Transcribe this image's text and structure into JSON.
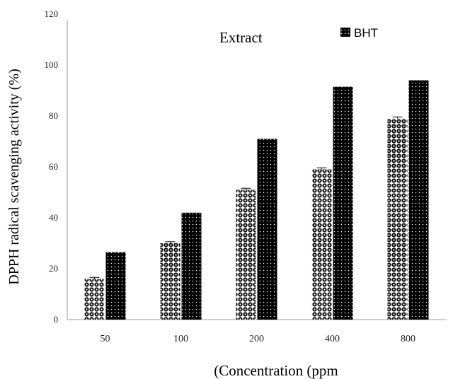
{
  "chart_data": {
    "type": "bar",
    "ylabel": "DPPH radical scavenging activity (%)",
    "xlabel": "(Concentration (ppm",
    "categories": [
      "50",
      "100",
      "200",
      "400",
      "800"
    ],
    "ylim": [
      0,
      120
    ],
    "yticks": [
      0,
      20,
      40,
      60,
      80,
      100,
      120
    ],
    "grid": false,
    "legend_position": "top",
    "series": [
      {
        "name": "Extract",
        "values": [
          16,
          30,
          51,
          59,
          79
        ],
        "errors": [
          0.6,
          0.6,
          0.6,
          0.6,
          0.6
        ],
        "pattern": "checker",
        "color": "#000000"
      },
      {
        "name": "BHT",
        "values": [
          26.5,
          42,
          71,
          91.5,
          94
        ],
        "pattern": "dots",
        "color": "#000000"
      }
    ]
  }
}
